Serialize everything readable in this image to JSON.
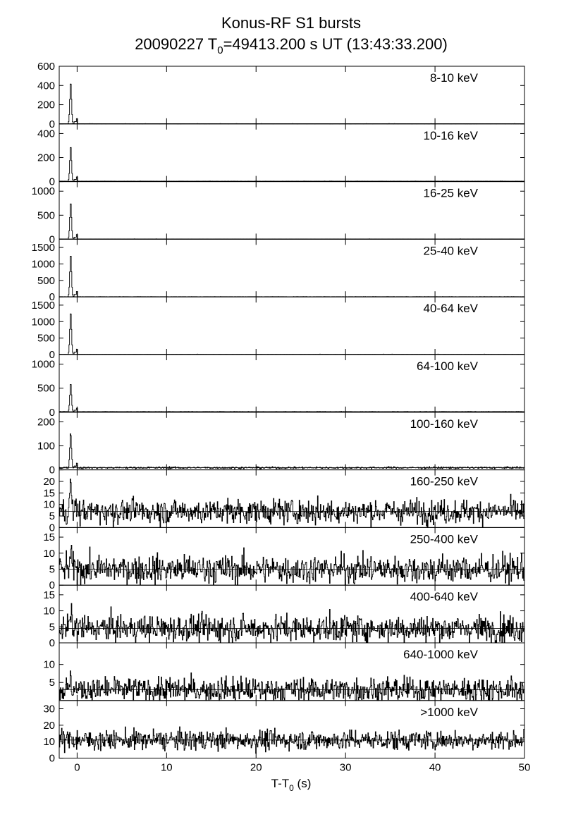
{
  "chart_data": {
    "type": "line",
    "title": "Konus-RF S1 bursts",
    "subtitle_parts": [
      "20090227 T",
      "0",
      "=49413.200 s UT (13:43:33.200)"
    ],
    "xlabel_parts": [
      "T-T",
      "0",
      " (s)"
    ],
    "x_range": [
      -2,
      50
    ],
    "x_ticks": [
      0,
      10,
      20,
      30,
      40,
      50
    ],
    "x_tick_labels": [
      "0",
      "10",
      "20",
      "30",
      "40",
      "50"
    ],
    "bin_width": 0.064,
    "grid": false,
    "series_color": "#000000",
    "panels": [
      {
        "band": "8-10 keV",
        "ylim": [
          0,
          600
        ],
        "yticks": [
          0,
          200,
          400,
          600
        ],
        "yticklabels": [
          "0",
          "200",
          "400",
          "600"
        ],
        "background": 2,
        "noise": 0.5,
        "peak": 440
      },
      {
        "band": "10-16 keV",
        "ylim": [
          0,
          480
        ],
        "yticks": [
          0,
          200,
          400
        ],
        "yticklabels": [
          "0",
          "200",
          "400"
        ],
        "background": 3,
        "noise": 0.6,
        "peak": 300
      },
      {
        "band": "16-25 keV",
        "ylim": [
          0,
          1200
        ],
        "yticks": [
          0,
          500,
          1000
        ],
        "yticklabels": [
          "0",
          "500",
          "1000"
        ],
        "background": 5,
        "noise": 1.0,
        "peak": 780
      },
      {
        "band": "25-40 keV",
        "ylim": [
          0,
          1750
        ],
        "yticks": [
          0,
          500,
          1000,
          1500
        ],
        "yticklabels": [
          "0",
          "500",
          "1000",
          "1500"
        ],
        "background": 7,
        "noise": 1.5,
        "peak": 1310
      },
      {
        "band": "40-64 keV",
        "ylim": [
          0,
          1750
        ],
        "yticks": [
          0,
          500,
          1000,
          1500
        ],
        "yticklabels": [
          "0",
          "500",
          "1000",
          "1500"
        ],
        "background": 9,
        "noise": 1.8,
        "peak": 1310
      },
      {
        "band": "64-100 keV",
        "ylim": [
          0,
          1200
        ],
        "yticks": [
          0,
          500,
          1000
        ],
        "yticklabels": [
          "0",
          "500",
          "1000"
        ],
        "background": 12,
        "noise": 2.0,
        "peak": 610
      },
      {
        "band": "100-160 keV",
        "ylim": [
          0,
          240
        ],
        "yticks": [
          0,
          100,
          200
        ],
        "yticklabels": [
          "0",
          "100",
          "200"
        ],
        "background": 9,
        "noise": 2.0,
        "peak": 155
      },
      {
        "band": "160-250 keV",
        "ylim": [
          0,
          25
        ],
        "yticks": [
          0,
          5,
          10,
          15,
          20
        ],
        "yticklabels": [
          "0",
          "5",
          "10",
          "15",
          "20"
        ],
        "background": 7,
        "noise": 2.6,
        "peak": 20
      },
      {
        "band": "250-400 keV",
        "ylim": [
          0,
          18
        ],
        "yticks": [
          0,
          5,
          10,
          15
        ],
        "yticklabels": [
          "0",
          "5",
          "10",
          "15"
        ],
        "background": 5,
        "noise": 2.2,
        "peak": 10
      },
      {
        "band": "400-640 keV",
        "ylim": [
          0,
          18
        ],
        "yticks": [
          0,
          5,
          10,
          15
        ],
        "yticklabels": [
          "0",
          "5",
          "10",
          "15"
        ],
        "background": 4.5,
        "noise": 2.1,
        "peak": 9
      },
      {
        "band": "640-1000 keV",
        "ylim": [
          0,
          16
        ],
        "yticks": [
          5,
          10
        ],
        "yticklabels": [
          "5",
          "10"
        ],
        "background": 3,
        "noise": 1.7,
        "peak": 6
      },
      {
        "band": ">1000 keV",
        "ylim": [
          0,
          35
        ],
        "yticks": [
          0,
          10,
          20,
          30
        ],
        "yticklabels": [
          "0",
          "10",
          "20",
          "30"
        ],
        "background": 11,
        "noise": 3.0,
        "peak": 14
      }
    ]
  }
}
